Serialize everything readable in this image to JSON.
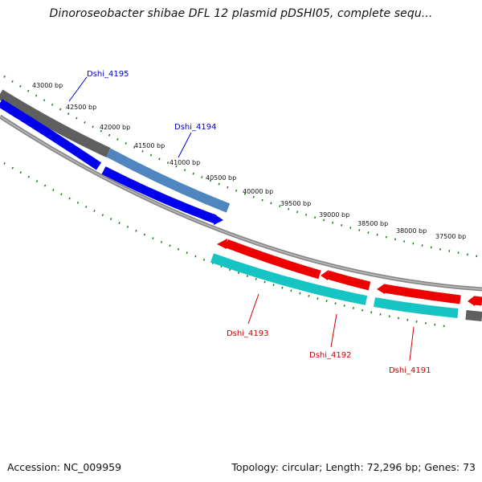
{
  "title": "Dinoroseobacter shibae DFL 12 plasmid pDSHI05, complete sequ...",
  "footer": {
    "accession": "Accession: NC_009959",
    "summary": "Topology: circular; Length: 72,296 bp; Genes: 73"
  },
  "colors": {
    "forward_gene": "#0000ee",
    "forward_cds": "#4f86c0",
    "reverse_gene": "#ee0000",
    "reverse_cds": "#17c4c4",
    "backbone": "#888888",
    "tick": "#1a7a1a",
    "grey_feature": "#6e6e6e",
    "label_forward": "#0000cc",
    "label_reverse": "#cc0000"
  },
  "ticks": [
    "43000 bp",
    "42500 bp",
    "42000 bp",
    "41500 bp",
    "41000 bp",
    "40500 bp",
    "40000 bp",
    "39500 bp",
    "39000 bp",
    "38500 bp",
    "38000 bp",
    "37500 bp"
  ],
  "gene_labels": [
    "Dshi_4195",
    "Dshi_4194",
    "Dshi_4193",
    "Dshi_4192",
    "Dshi_4191"
  ]
}
